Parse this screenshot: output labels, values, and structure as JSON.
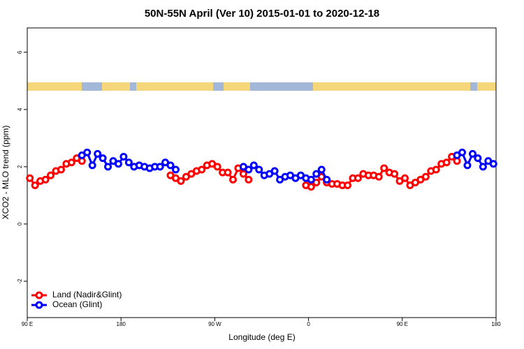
{
  "chart_data": {
    "type": "line",
    "title": "50N-55N April (Ver 10)   2015-01-01 to 2020-12-18",
    "x_label": "Longitude (deg E)",
    "y_label": "XCO2 - MLO trend (ppm)",
    "xlim": [
      90,
      540
    ],
    "xticks": [
      {
        "value": 90,
        "label": "90 E"
      },
      {
        "value": 180,
        "label": "180"
      },
      {
        "value": 270,
        "label": "90 W"
      },
      {
        "value": 360,
        "label": "0"
      },
      {
        "value": 450,
        "label": "90 E"
      },
      {
        "value": 540,
        "label": "180"
      }
    ],
    "ylim": [
      -3.27,
      6.85
    ],
    "yticks": [
      -2,
      0,
      2,
      4,
      6
    ],
    "legend": "bottomleft",
    "series": [
      {
        "name": "Land (Nadir&Glint)",
        "color": "#ff0000",
        "x": [
          92.5,
          97.5,
          102.5,
          107.5,
          112.5,
          117.5,
          122.5,
          127.5,
          132.5,
          137.5,
          142.5,
          null,
          227.5,
          232.5,
          237.5,
          242.5,
          247.5,
          252.5,
          257.5,
          262.5,
          267.5,
          272.5,
          277.5,
          282.5,
          287.5,
          292.5,
          297.5,
          302.5,
          null,
          357.5,
          362.5,
          367.5,
          372.5,
          377.5,
          382.5,
          387.5,
          392.5,
          397.5,
          402.5,
          407.5,
          412.5,
          417.5,
          422.5,
          427.5,
          432.5,
          437.5,
          442.5,
          447.5,
          452.5,
          457.5,
          462.5,
          467.5,
          472.5,
          477.5,
          482.5,
          487.5,
          492.5,
          497.5,
          502.5
        ],
        "values": [
          1.6,
          1.35,
          1.5,
          1.55,
          1.7,
          1.85,
          1.9,
          2.1,
          2.15,
          2.3,
          2.2,
          null,
          1.7,
          1.6,
          1.5,
          1.65,
          1.75,
          1.85,
          1.9,
          2.05,
          2.1,
          2.0,
          1.8,
          1.8,
          1.55,
          1.95,
          1.75,
          1.55,
          null,
          1.35,
          1.3,
          1.45,
          1.65,
          1.45,
          1.4,
          1.4,
          1.35,
          1.35,
          1.6,
          1.6,
          1.75,
          1.7,
          1.7,
          1.65,
          1.95,
          1.8,
          1.75,
          1.5,
          1.6,
          1.35,
          1.45,
          1.55,
          1.65,
          1.85,
          1.9,
          2.1,
          2.15,
          2.35,
          2.2
        ]
      },
      {
        "name": "Ocean (Glint)",
        "color": "#0000ff",
        "x": [
          142.5,
          147.5,
          152.5,
          157.5,
          162.5,
          167.5,
          172.5,
          177.5,
          182.5,
          187.5,
          192.5,
          197.5,
          202.5,
          207.5,
          212.5,
          217.5,
          222.5,
          227.5,
          232.5,
          null,
          297.5,
          302.5,
          307.5,
          312.5,
          317.5,
          322.5,
          327.5,
          332.5,
          337.5,
          342.5,
          347.5,
          352.5,
          357.5,
          362.5,
          367.5,
          372.5,
          377.5,
          null,
          502.5,
          507.5,
          512.5,
          517.5,
          522.5,
          527.5,
          532.5,
          537.5
        ],
        "values": [
          2.4,
          2.5,
          2.05,
          2.45,
          2.3,
          2.0,
          2.2,
          2.1,
          2.35,
          2.15,
          2.0,
          2.05,
          2.0,
          1.95,
          2.0,
          2.0,
          2.15,
          2.05,
          1.9,
          null,
          2.0,
          1.9,
          2.05,
          1.9,
          1.7,
          1.75,
          1.85,
          1.55,
          1.65,
          1.7,
          1.6,
          1.7,
          1.6,
          1.55,
          1.75,
          1.9,
          1.55,
          null,
          2.4,
          2.5,
          2.05,
          2.45,
          2.3,
          2.0,
          2.2,
          2.1
        ]
      }
    ]
  }
}
